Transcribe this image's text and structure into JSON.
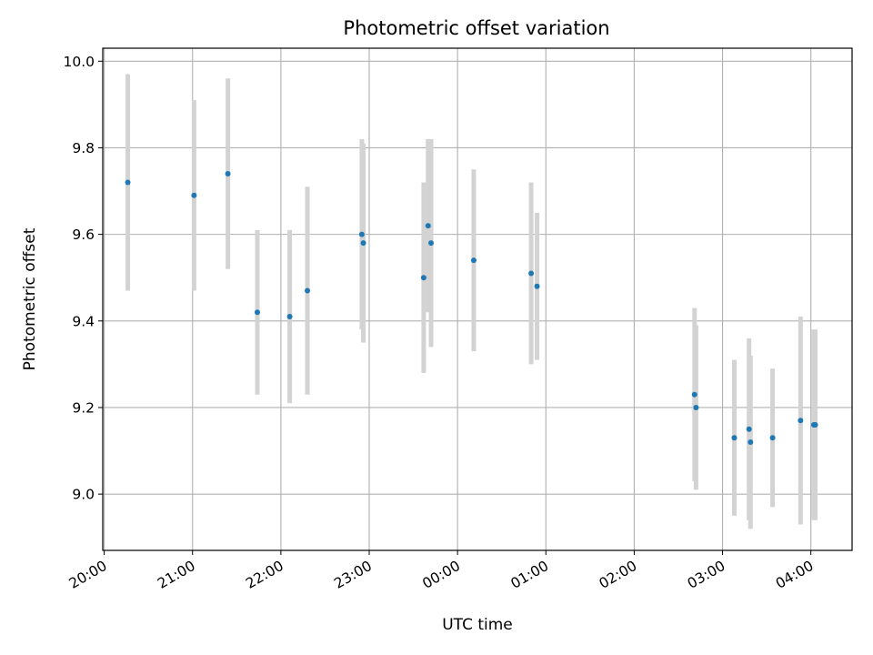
{
  "chart_data": {
    "type": "scatter",
    "title": "Photometric offset variation",
    "xlabel": "UTC time",
    "ylabel": "Photometric offset",
    "x_tick_labels": [
      "20:00",
      "21:00",
      "22:00",
      "23:00",
      "00:00",
      "01:00",
      "02:00",
      "03:00",
      "04:00"
    ],
    "xlim": [
      "19:59",
      "04:28"
    ],
    "ylim": [
      8.87,
      10.03
    ],
    "y_ticks": [
      9.0,
      9.2,
      9.4,
      9.6,
      9.8,
      10.0
    ],
    "y_tick_labels": [
      "9.0",
      "9.2",
      "9.4",
      "9.6",
      "9.8",
      "10.0"
    ],
    "grid": true,
    "colors": {
      "point": "#1f77b4",
      "error_bar": "#d3d3d3"
    },
    "series": [
      {
        "points": [
          {
            "x": "20:16",
            "y": 9.72,
            "yerr": 0.25
          },
          {
            "x": "21:01",
            "y": 9.69,
            "yerr": 0.22
          },
          {
            "x": "21:24",
            "y": 9.74,
            "yerr": 0.22
          },
          {
            "x": "21:44",
            "y": 9.42,
            "yerr": 0.19
          },
          {
            "x": "22:06",
            "y": 9.41,
            "yerr": 0.2
          },
          {
            "x": "22:18",
            "y": 9.47,
            "yerr": 0.24
          },
          {
            "x": "22:55",
            "y": 9.6,
            "yerr": 0.22
          },
          {
            "x": "22:56",
            "y": 9.58,
            "yerr": 0.23
          },
          {
            "x": "23:37",
            "y": 9.5,
            "yerr": 0.22
          },
          {
            "x": "23:40",
            "y": 9.62,
            "yerr": 0.2
          },
          {
            "x": "23:42",
            "y": 9.58,
            "yerr": 0.24
          },
          {
            "x": "00:11",
            "y": 9.54,
            "yerr": 0.21
          },
          {
            "x": "00:50",
            "y": 9.51,
            "yerr": 0.21
          },
          {
            "x": "00:54",
            "y": 9.48,
            "yerr": 0.17
          },
          {
            "x": "02:41",
            "y": 9.23,
            "yerr": 0.2
          },
          {
            "x": "02:42",
            "y": 9.2,
            "yerr": 0.19
          },
          {
            "x": "03:08",
            "y": 9.13,
            "yerr": 0.18
          },
          {
            "x": "03:18",
            "y": 9.15,
            "yerr": 0.21
          },
          {
            "x": "03:19",
            "y": 9.12,
            "yerr": 0.2
          },
          {
            "x": "03:34",
            "y": 9.13,
            "yerr": 0.16
          },
          {
            "x": "03:53",
            "y": 9.17,
            "yerr": 0.24
          },
          {
            "x": "04:02",
            "y": 9.16,
            "yerr": 0.22
          },
          {
            "x": "04:03",
            "y": 9.16,
            "yerr": 0.22
          }
        ]
      }
    ]
  }
}
